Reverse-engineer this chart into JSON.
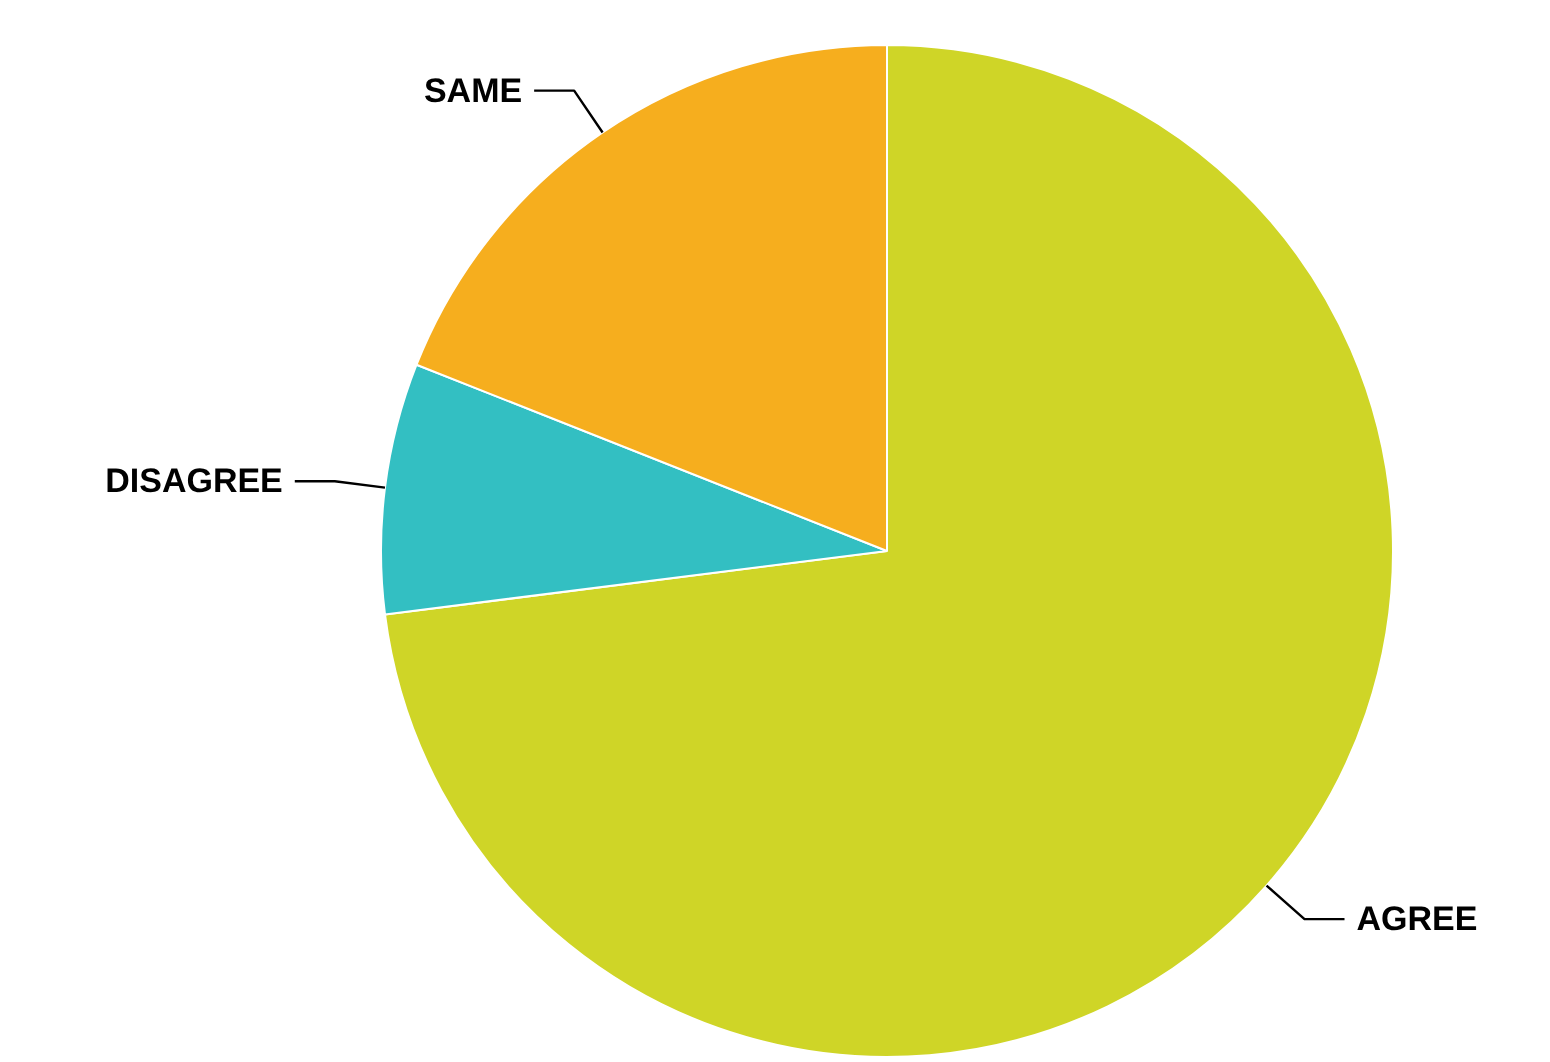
{
  "chart_data": {
    "type": "pie",
    "categories": [
      "AGREE",
      "DISAGREE",
      "SAME"
    ],
    "values": [
      73,
      8,
      19
    ],
    "colors": [
      "#cfd527",
      "#33bfc2",
      "#f6ae1e"
    ]
  }
}
